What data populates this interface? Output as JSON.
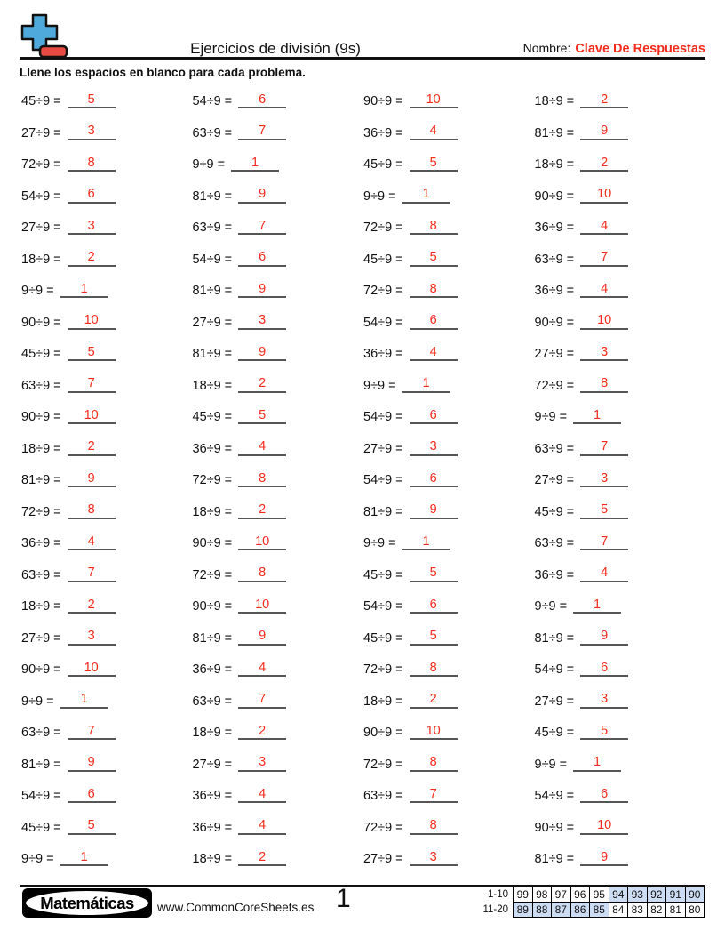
{
  "header": {
    "title": "Ejercicios de división (9s)",
    "name_label": "Nombre:",
    "name_value": "Clave De Respuestas",
    "instruction": "Llene los espacios en blanco para cada problema."
  },
  "icons": {
    "logo": "plus-minus-math-icon"
  },
  "problems": {
    "columns": [
      [
        {
          "q": "45÷9 =",
          "a": "5"
        },
        {
          "q": "27÷9 =",
          "a": "3"
        },
        {
          "q": "72÷9 =",
          "a": "8"
        },
        {
          "q": "54÷9 =",
          "a": "6"
        },
        {
          "q": "27÷9 =",
          "a": "3"
        },
        {
          "q": "18÷9 =",
          "a": "2"
        },
        {
          "q": "9÷9 =",
          "a": "1"
        },
        {
          "q": "90÷9 =",
          "a": "10"
        },
        {
          "q": "45÷9 =",
          "a": "5"
        },
        {
          "q": "63÷9 =",
          "a": "7"
        },
        {
          "q": "90÷9 =",
          "a": "10"
        },
        {
          "q": "18÷9 =",
          "a": "2"
        },
        {
          "q": "81÷9 =",
          "a": "9"
        },
        {
          "q": "72÷9 =",
          "a": "8"
        },
        {
          "q": "36÷9 =",
          "a": "4"
        },
        {
          "q": "63÷9 =",
          "a": "7"
        },
        {
          "q": "18÷9 =",
          "a": "2"
        },
        {
          "q": "27÷9 =",
          "a": "3"
        },
        {
          "q": "90÷9 =",
          "a": "10"
        },
        {
          "q": "9÷9 =",
          "a": "1"
        },
        {
          "q": "63÷9 =",
          "a": "7"
        },
        {
          "q": "81÷9 =",
          "a": "9"
        },
        {
          "q": "54÷9 =",
          "a": "6"
        },
        {
          "q": "45÷9 =",
          "a": "5"
        },
        {
          "q": "9÷9 =",
          "a": "1"
        }
      ],
      [
        {
          "q": "54÷9 =",
          "a": "6"
        },
        {
          "q": "63÷9 =",
          "a": "7"
        },
        {
          "q": "9÷9 =",
          "a": "1"
        },
        {
          "q": "81÷9 =",
          "a": "9"
        },
        {
          "q": "63÷9 =",
          "a": "7"
        },
        {
          "q": "54÷9 =",
          "a": "6"
        },
        {
          "q": "81÷9 =",
          "a": "9"
        },
        {
          "q": "27÷9 =",
          "a": "3"
        },
        {
          "q": "81÷9 =",
          "a": "9"
        },
        {
          "q": "18÷9 =",
          "a": "2"
        },
        {
          "q": "45÷9 =",
          "a": "5"
        },
        {
          "q": "36÷9 =",
          "a": "4"
        },
        {
          "q": "72÷9 =",
          "a": "8"
        },
        {
          "q": "18÷9 =",
          "a": "2"
        },
        {
          "q": "90÷9 =",
          "a": "10"
        },
        {
          "q": "72÷9 =",
          "a": "8"
        },
        {
          "q": "90÷9 =",
          "a": "10"
        },
        {
          "q": "81÷9 =",
          "a": "9"
        },
        {
          "q": "36÷9 =",
          "a": "4"
        },
        {
          "q": "63÷9 =",
          "a": "7"
        },
        {
          "q": "18÷9 =",
          "a": "2"
        },
        {
          "q": "27÷9 =",
          "a": "3"
        },
        {
          "q": "36÷9 =",
          "a": "4"
        },
        {
          "q": "36÷9 =",
          "a": "4"
        },
        {
          "q": "18÷9 =",
          "a": "2"
        }
      ],
      [
        {
          "q": "90÷9 =",
          "a": "10"
        },
        {
          "q": "36÷9 =",
          "a": "4"
        },
        {
          "q": "45÷9 =",
          "a": "5"
        },
        {
          "q": "9÷9 =",
          "a": "1"
        },
        {
          "q": "72÷9 =",
          "a": "8"
        },
        {
          "q": "45÷9 =",
          "a": "5"
        },
        {
          "q": "72÷9 =",
          "a": "8"
        },
        {
          "q": "54÷9 =",
          "a": "6"
        },
        {
          "q": "36÷9 =",
          "a": "4"
        },
        {
          "q": "9÷9 =",
          "a": "1"
        },
        {
          "q": "54÷9 =",
          "a": "6"
        },
        {
          "q": "27÷9 =",
          "a": "3"
        },
        {
          "q": "54÷9 =",
          "a": "6"
        },
        {
          "q": "81÷9 =",
          "a": "9"
        },
        {
          "q": "9÷9 =",
          "a": "1"
        },
        {
          "q": "45÷9 =",
          "a": "5"
        },
        {
          "q": "54÷9 =",
          "a": "6"
        },
        {
          "q": "45÷9 =",
          "a": "5"
        },
        {
          "q": "72÷9 =",
          "a": "8"
        },
        {
          "q": "18÷9 =",
          "a": "2"
        },
        {
          "q": "90÷9 =",
          "a": "10"
        },
        {
          "q": "72÷9 =",
          "a": "8"
        },
        {
          "q": "63÷9 =",
          "a": "7"
        },
        {
          "q": "72÷9 =",
          "a": "8"
        },
        {
          "q": "27÷9 =",
          "a": "3"
        }
      ],
      [
        {
          "q": "18÷9 =",
          "a": "2"
        },
        {
          "q": "81÷9 =",
          "a": "9"
        },
        {
          "q": "18÷9 =",
          "a": "2"
        },
        {
          "q": "90÷9 =",
          "a": "10"
        },
        {
          "q": "36÷9 =",
          "a": "4"
        },
        {
          "q": "63÷9 =",
          "a": "7"
        },
        {
          "q": "36÷9 =",
          "a": "4"
        },
        {
          "q": "90÷9 =",
          "a": "10"
        },
        {
          "q": "27÷9 =",
          "a": "3"
        },
        {
          "q": "72÷9 =",
          "a": "8"
        },
        {
          "q": "9÷9 =",
          "a": "1"
        },
        {
          "q": "63÷9 =",
          "a": "7"
        },
        {
          "q": "27÷9 =",
          "a": "3"
        },
        {
          "q": "45÷9 =",
          "a": "5"
        },
        {
          "q": "63÷9 =",
          "a": "7"
        },
        {
          "q": "36÷9 =",
          "a": "4"
        },
        {
          "q": "9÷9 =",
          "a": "1"
        },
        {
          "q": "81÷9 =",
          "a": "9"
        },
        {
          "q": "54÷9 =",
          "a": "6"
        },
        {
          "q": "27÷9 =",
          "a": "3"
        },
        {
          "q": "45÷9 =",
          "a": "5"
        },
        {
          "q": "9÷9 =",
          "a": "1"
        },
        {
          "q": "54÷9 =",
          "a": "6"
        },
        {
          "q": "90÷9 =",
          "a": "10"
        },
        {
          "q": "81÷9 =",
          "a": "9"
        }
      ]
    ]
  },
  "footer": {
    "badge": "Matemáticas",
    "website": "www.CommonCoreSheets.es",
    "page_number": "1",
    "score_table": {
      "rows": [
        {
          "label": "1-10",
          "cells": [
            "99",
            "98",
            "97",
            "96",
            "95",
            "94",
            "93",
            "92",
            "91",
            "90"
          ],
          "highlighted": [
            5,
            6,
            7,
            8,
            9
          ]
        },
        {
          "label": "11-20",
          "cells": [
            "89",
            "88",
            "87",
            "86",
            "85",
            "84",
            "83",
            "82",
            "81",
            "80"
          ],
          "highlighted": [
            0,
            1,
            2,
            3,
            4
          ]
        }
      ]
    }
  },
  "colors": {
    "answer_red": "#f42b1c",
    "logo_blue": "#4fa9da",
    "logo_red": "#e64a41",
    "table_highlight": "#ccdcf2"
  }
}
